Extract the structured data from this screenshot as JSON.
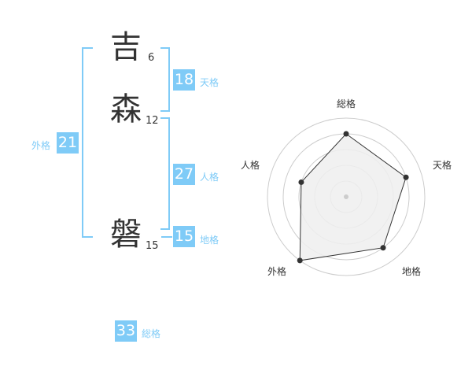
{
  "name": {
    "chars": [
      {
        "char": "吉",
        "strokes": "6"
      },
      {
        "char": "森",
        "strokes": "12"
      },
      {
        "char": "磐",
        "strokes": "15"
      }
    ]
  },
  "fortunes": {
    "tenkaku": {
      "label": "天格",
      "value": "18"
    },
    "jinkaku": {
      "label": "人格",
      "value": "27"
    },
    "chikaku": {
      "label": "地格",
      "value": "15"
    },
    "gaikaku": {
      "label": "外格",
      "value": "21"
    },
    "soukaku": {
      "label": "総格",
      "value": "33"
    }
  },
  "chart_data": {
    "type": "radar",
    "axes": [
      "総格",
      "天格",
      "地格",
      "外格",
      "人格"
    ],
    "values": [
      4,
      4,
      4,
      5,
      3
    ],
    "range": [
      0,
      5
    ],
    "rings": 5,
    "colors": {
      "fill": "#efefef",
      "line": "#333333",
      "grid": "#cccccc",
      "accent": "#7fcbf7"
    }
  }
}
